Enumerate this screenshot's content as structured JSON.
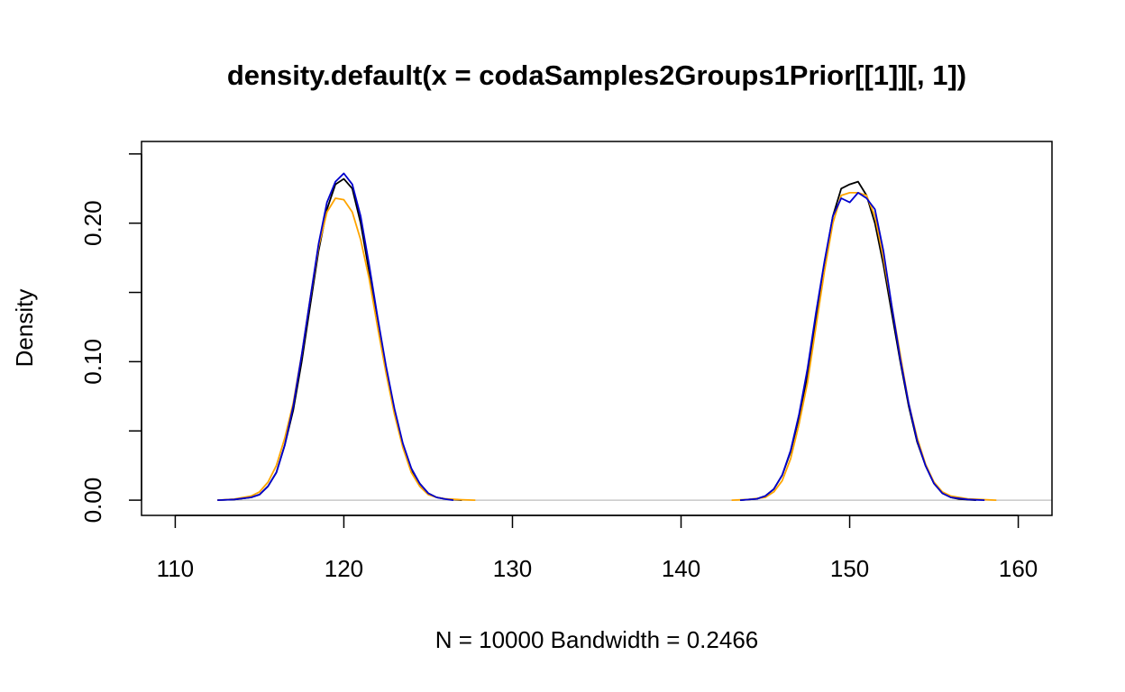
{
  "chart_data": {
    "type": "line",
    "title": "density.default(x = codaSamples2Groups1Prior[[1]][, 1])",
    "xlabel": "N = 10000   Bandwidth = 0.2466",
    "ylabel": "Density",
    "xlim": [
      108,
      162
    ],
    "ylim": [
      -0.011,
      0.259
    ],
    "x_ticks": [
      110,
      120,
      130,
      140,
      150,
      160
    ],
    "x_tick_labels": [
      "110",
      "120",
      "130",
      "140",
      "150",
      "160"
    ],
    "y_ticks": [
      0,
      0.05,
      0.1,
      0.15,
      0.2,
      0.25
    ],
    "y_tick_labels": [
      "0.00",
      "",
      "0.10",
      "",
      "0.20",
      ""
    ],
    "grid": false,
    "zero_line": true,
    "series": [
      {
        "color": "#000000",
        "x": [
          112.5,
          113.5,
          114.5,
          115.0,
          115.5,
          116.0,
          116.5,
          117.0,
          117.5,
          118.0,
          118.5,
          119.0,
          119.5,
          120.0,
          120.5,
          121.0,
          121.5,
          122.0,
          122.5,
          123.0,
          123.5,
          124.0,
          124.5,
          125.0,
          125.5,
          126.0,
          127.0,
          143.5,
          144.5,
          145.0,
          145.5,
          146.0,
          146.5,
          147.0,
          147.5,
          148.0,
          148.5,
          149.0,
          149.5,
          150.0,
          150.5,
          151.0,
          151.5,
          152.0,
          152.5,
          153.0,
          153.5,
          154.0,
          154.5,
          155.0,
          155.5,
          156.0,
          156.5,
          157.5
        ],
        "y": [
          0.0,
          0.0005,
          0.002,
          0.004,
          0.01,
          0.02,
          0.04,
          0.065,
          0.1,
          0.14,
          0.18,
          0.21,
          0.228,
          0.232,
          0.225,
          0.2,
          0.165,
          0.13,
          0.095,
          0.065,
          0.04,
          0.022,
          0.012,
          0.005,
          0.002,
          0.001,
          0.0,
          0.0,
          0.001,
          0.003,
          0.008,
          0.018,
          0.035,
          0.06,
          0.09,
          0.13,
          0.17,
          0.205,
          0.225,
          0.228,
          0.23,
          0.22,
          0.2,
          0.17,
          0.135,
          0.1,
          0.068,
          0.042,
          0.025,
          0.012,
          0.005,
          0.002,
          0.0008,
          0.0
        ]
      },
      {
        "color": "#ffa500",
        "x": [
          112.5,
          113.5,
          114.5,
          115.0,
          115.5,
          116.0,
          116.5,
          117.0,
          117.5,
          118.0,
          118.5,
          119.0,
          119.5,
          120.0,
          120.5,
          121.0,
          121.5,
          122.0,
          122.5,
          123.0,
          123.5,
          124.0,
          124.5,
          125.0,
          125.5,
          126.0,
          127.0,
          127.8,
          143.0,
          144.0,
          145.0,
          145.5,
          146.0,
          146.5,
          147.0,
          147.5,
          148.0,
          148.5,
          149.0,
          149.5,
          150.0,
          150.5,
          151.0,
          151.5,
          152.0,
          152.5,
          153.0,
          153.5,
          154.0,
          154.5,
          155.0,
          155.5,
          156.0,
          157.0,
          158.7
        ],
        "y": [
          0.0,
          0.0008,
          0.003,
          0.006,
          0.013,
          0.025,
          0.045,
          0.07,
          0.105,
          0.145,
          0.183,
          0.208,
          0.218,
          0.217,
          0.208,
          0.188,
          0.16,
          0.125,
          0.092,
          0.062,
          0.038,
          0.02,
          0.01,
          0.004,
          0.002,
          0.001,
          0.0003,
          0.0,
          0.0,
          0.0005,
          0.002,
          0.006,
          0.014,
          0.03,
          0.055,
          0.085,
          0.125,
          0.165,
          0.2,
          0.22,
          0.222,
          0.222,
          0.22,
          0.205,
          0.175,
          0.14,
          0.105,
          0.07,
          0.045,
          0.026,
          0.013,
          0.006,
          0.003,
          0.001,
          0.0
        ]
      },
      {
        "color": "#0000cd",
        "x": [
          112.5,
          113.5,
          114.5,
          115.0,
          115.5,
          116.0,
          116.5,
          117.0,
          117.5,
          118.0,
          118.5,
          119.0,
          119.5,
          120.0,
          120.5,
          121.0,
          121.5,
          122.0,
          122.5,
          123.0,
          123.5,
          124.0,
          124.5,
          125.0,
          125.5,
          126.0,
          126.5,
          143.5,
          144.5,
          145.0,
          145.5,
          146.0,
          146.5,
          147.0,
          147.5,
          148.0,
          148.5,
          149.0,
          149.5,
          150.0,
          150.5,
          151.0,
          151.5,
          152.0,
          152.5,
          153.0,
          153.5,
          154.0,
          154.5,
          155.0,
          155.5,
          156.0,
          157.0,
          158.0
        ],
        "y": [
          0.0,
          0.0005,
          0.002,
          0.004,
          0.01,
          0.02,
          0.04,
          0.068,
          0.105,
          0.145,
          0.185,
          0.215,
          0.23,
          0.236,
          0.228,
          0.205,
          0.17,
          0.132,
          0.097,
          0.066,
          0.041,
          0.023,
          0.012,
          0.005,
          0.002,
          0.0008,
          0.0,
          0.0,
          0.001,
          0.003,
          0.008,
          0.018,
          0.036,
          0.062,
          0.095,
          0.135,
          0.172,
          0.205,
          0.218,
          0.215,
          0.222,
          0.218,
          0.21,
          0.18,
          0.14,
          0.102,
          0.07,
          0.043,
          0.025,
          0.012,
          0.005,
          0.002,
          0.0005,
          0.0
        ]
      }
    ]
  }
}
